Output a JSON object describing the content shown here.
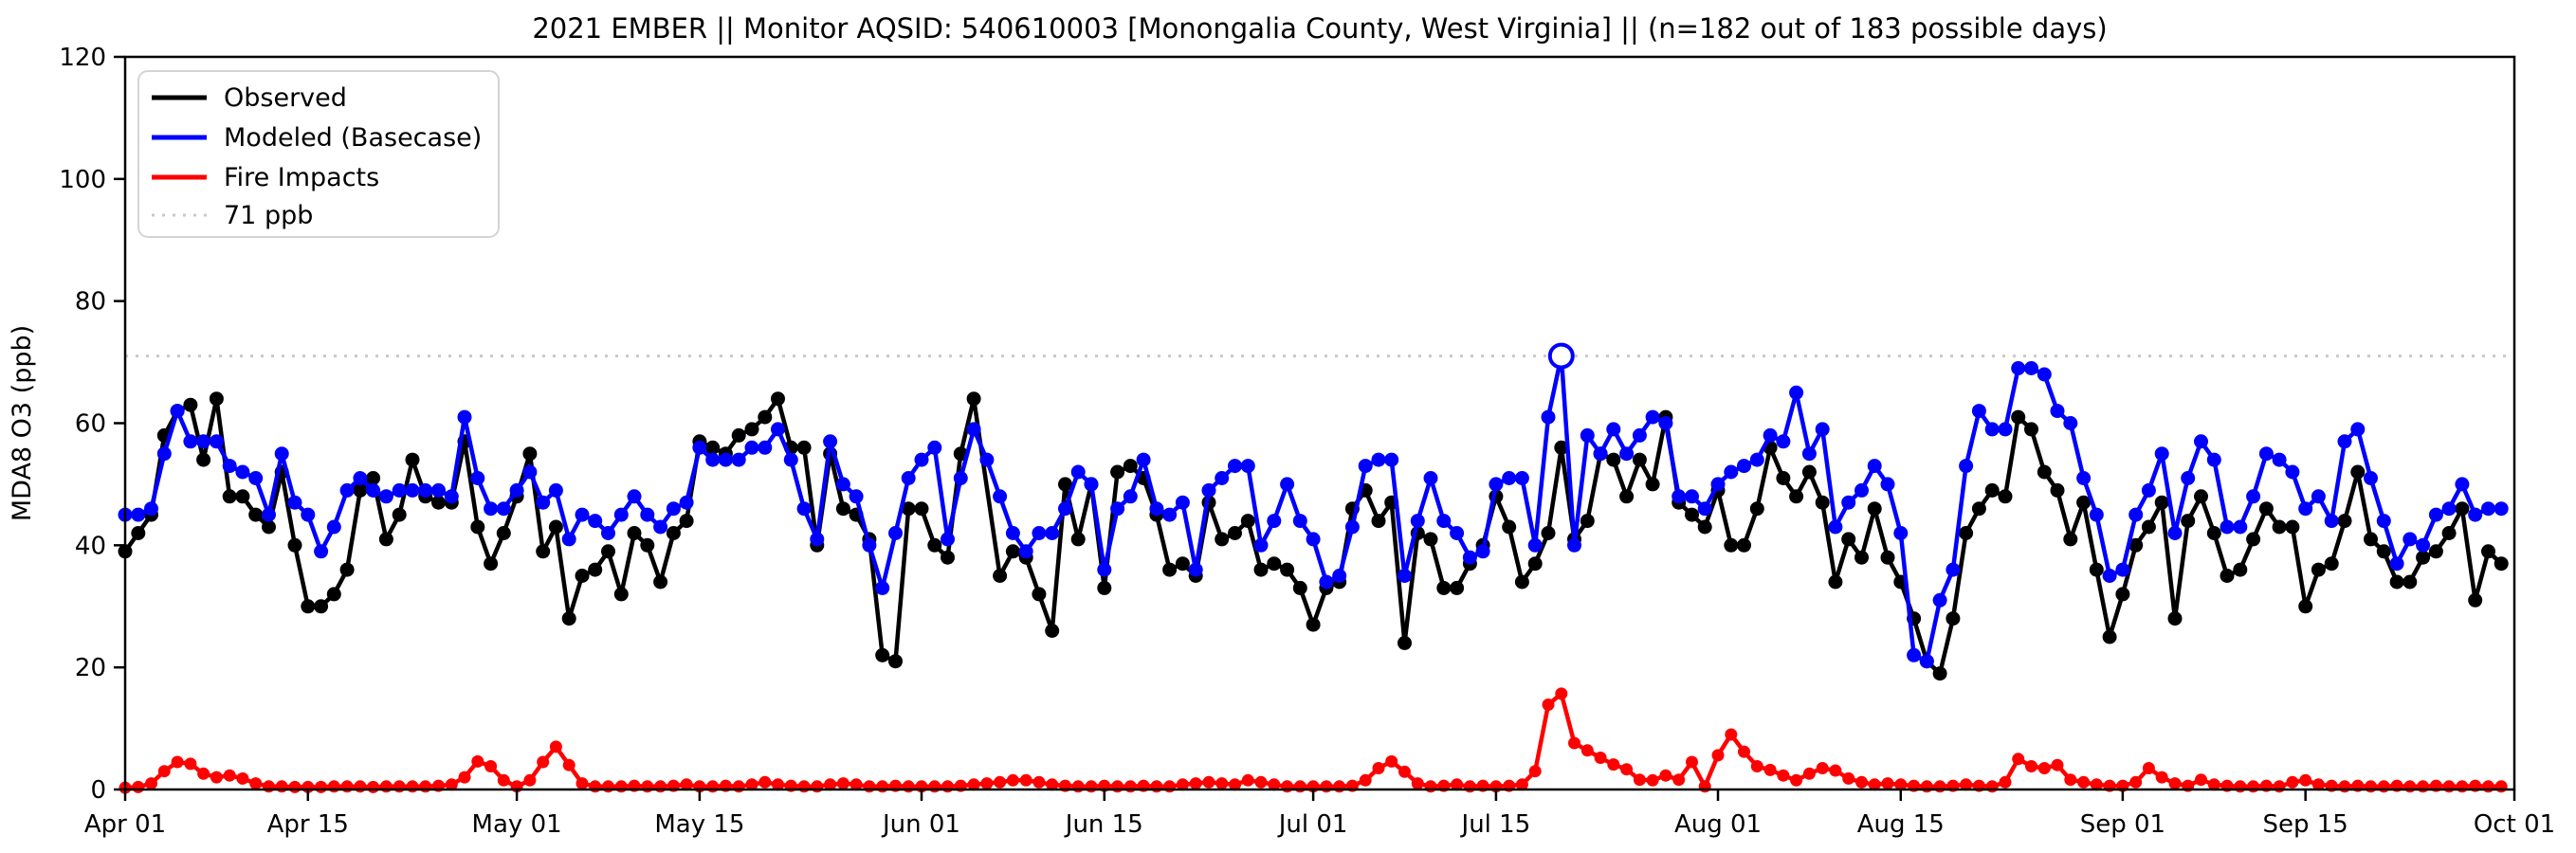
{
  "chart_data": {
    "type": "line",
    "title": "2021 EMBER || Monitor AQSID: 540610003 [Monongalia County, West Virginia] || (n=182 out of 183 possible days)",
    "ylabel": "MDA8 O3 (ppb)",
    "ylim": [
      0,
      120
    ],
    "yticks": [
      0,
      20,
      40,
      60,
      80,
      100,
      120
    ],
    "xtick_labels": [
      "Apr 01",
      "Apr 15",
      "May 01",
      "May 15",
      "Jun 01",
      "Jun 15",
      "Jul 01",
      "Jul 15",
      "Aug 01",
      "Aug 15",
      "Sep 01",
      "Sep 15",
      "Oct 01"
    ],
    "xtick_day_index": [
      0,
      14,
      30,
      44,
      61,
      75,
      91,
      105,
      122,
      136,
      153,
      167,
      183
    ],
    "x_months": [
      {
        "name": "Apr",
        "days": 30
      },
      {
        "name": "May",
        "days": 31
      },
      {
        "name": "Jun",
        "days": 30
      },
      {
        "name": "Jul",
        "days": 31
      },
      {
        "name": "Aug",
        "days": 31
      },
      {
        "name": "Sep",
        "days": 30
      }
    ],
    "x_start": "Apr 01",
    "x_end": "Sep 30",
    "frequency": "daily",
    "n_note": "n=182 out of 183 possible days",
    "grid": false,
    "legend_position": "upper left",
    "background": "#ffffff",
    "series": [
      {
        "name": "Observed",
        "color": "#000000",
        "values": [
          39,
          42,
          45,
          58,
          62,
          63,
          54,
          64,
          48,
          48,
          45,
          43,
          52,
          40,
          30,
          30,
          32,
          36,
          49,
          51,
          41,
          45,
          54,
          48,
          47,
          47,
          57,
          43,
          37,
          42,
          48,
          55,
          39,
          43,
          28,
          35,
          36,
          39,
          32,
          42,
          40,
          34,
          42,
          44,
          57,
          56,
          55,
          58,
          59,
          61,
          64,
          56,
          56,
          40,
          55,
          46,
          45,
          41,
          22,
          21,
          46,
          46,
          40,
          38,
          55,
          64,
          null,
          35,
          39,
          38,
          32,
          26,
          50,
          41,
          50,
          33,
          52,
          53,
          51,
          45,
          36,
          37,
          35,
          47,
          41,
          42,
          44,
          36,
          37,
          36,
          33,
          27,
          33,
          34,
          46,
          49,
          44,
          47,
          24,
          42,
          41,
          33,
          33,
          37,
          40,
          48,
          43,
          34,
          37,
          42,
          56,
          41,
          44,
          55,
          54,
          48,
          54,
          50,
          61,
          47,
          45,
          43,
          49,
          40,
          40,
          46,
          56,
          51,
          48,
          52,
          47,
          34,
          41,
          38,
          46,
          38,
          34,
          28,
          21,
          19,
          28,
          42,
          46,
          49,
          48,
          61,
          59,
          52,
          49,
          41,
          47,
          36,
          25,
          32,
          40,
          43,
          47,
          28,
          44,
          48,
          42,
          35,
          36,
          41,
          46,
          43,
          43,
          30,
          36,
          37,
          44,
          52,
          41,
          39,
          34,
          34,
          38,
          39,
          42,
          46,
          31,
          39,
          37
        ]
      },
      {
        "name": "Modeled (Basecase)",
        "color": "#0000ff",
        "values": [
          45,
          45,
          46,
          55,
          62,
          57,
          57,
          57,
          53,
          52,
          51,
          45,
          55,
          47,
          45,
          39,
          43,
          49,
          51,
          49,
          48,
          49,
          49,
          49,
          49,
          48,
          61,
          51,
          46,
          46,
          49,
          52,
          47,
          49,
          41,
          45,
          44,
          42,
          45,
          48,
          45,
          43,
          46,
          47,
          56,
          54,
          54,
          54,
          56,
          56,
          59,
          54,
          46,
          41,
          57,
          50,
          48,
          40,
          33,
          42,
          51,
          54,
          56,
          41,
          51,
          59,
          54,
          48,
          42,
          39,
          42,
          42,
          46,
          52,
          50,
          36,
          46,
          48,
          54,
          46,
          45,
          47,
          36,
          49,
          51,
          53,
          53,
          40,
          44,
          50,
          44,
          41,
          34,
          35,
          43,
          53,
          54,
          54,
          35,
          44,
          51,
          44,
          42,
          38,
          39,
          50,
          51,
          51,
          40,
          61,
          71,
          40,
          58,
          55,
          59,
          55,
          58,
          61,
          60,
          48,
          48,
          46,
          50,
          52,
          53,
          54,
          58,
          57,
          65,
          55,
          59,
          43,
          47,
          49,
          53,
          50,
          42,
          22,
          21,
          31,
          36,
          53,
          62,
          59,
          59,
          69,
          69,
          68,
          62,
          60,
          51,
          45,
          35,
          36,
          45,
          49,
          55,
          42,
          51,
          57,
          54,
          43,
          43,
          48,
          55,
          54,
          52,
          46,
          48,
          44,
          57,
          59,
          51,
          44,
          37,
          41,
          40,
          45,
          46,
          50,
          45,
          46,
          46
        ],
        "exceedance_marker": {
          "day_index": 110,
          "date": "Jul 20",
          "value": 71,
          "style": "open-circle"
        }
      },
      {
        "name": "Fire Impacts",
        "color": "#ff0000",
        "values": [
          0.3,
          0.4,
          1.0,
          3.0,
          4.5,
          4.2,
          2.6,
          2.0,
          2.3,
          1.8,
          1.0,
          0.5,
          0.5,
          0.4,
          0.4,
          0.4,
          0.5,
          0.5,
          0.5,
          0.4,
          0.5,
          0.5,
          0.5,
          0.5,
          0.6,
          0.8,
          2.0,
          4.6,
          3.8,
          1.5,
          0.5,
          1.5,
          4.5,
          7.0,
          4.0,
          1.0,
          0.5,
          0.5,
          0.5,
          0.6,
          0.5,
          0.5,
          0.6,
          0.8,
          0.5,
          0.5,
          0.6,
          0.5,
          0.8,
          1.2,
          0.8,
          0.6,
          0.5,
          0.5,
          0.8,
          1.0,
          0.8,
          0.5,
          0.5,
          0.6,
          0.5,
          0.5,
          0.5,
          0.5,
          0.6,
          0.8,
          1.0,
          1.2,
          1.5,
          1.5,
          1.2,
          0.8,
          0.6,
          0.5,
          0.5,
          0.6,
          0.5,
          0.5,
          0.6,
          0.5,
          0.5,
          0.8,
          1.0,
          1.2,
          1.0,
          0.8,
          1.5,
          1.2,
          0.8,
          0.5,
          0.5,
          0.5,
          0.5,
          0.5,
          0.6,
          1.5,
          3.5,
          4.6,
          2.9,
          1.0,
          0.5,
          0.6,
          0.8,
          0.5,
          0.6,
          0.5,
          0.6,
          0.8,
          3.0,
          13.9,
          15.7,
          7.6,
          6.4,
          5.2,
          4.1,
          3.3,
          1.6,
          1.5,
          2.3,
          1.6,
          4.5,
          0.5,
          5.6,
          9.0,
          6.2,
          3.8,
          3.2,
          2.3,
          1.5,
          2.6,
          3.5,
          3.1,
          1.8,
          1.2,
          0.8,
          1.0,
          0.8,
          0.6,
          0.5,
          0.5,
          0.6,
          0.8,
          0.6,
          0.5,
          1.2,
          5.0,
          3.8,
          3.5,
          4.0,
          1.6,
          1.2,
          0.8,
          0.6,
          0.6,
          1.2,
          3.5,
          2.0,
          1.0,
          0.6,
          1.6,
          0.8,
          0.6,
          0.5,
          0.5,
          0.6,
          0.5,
          1.2,
          1.5,
          0.8,
          0.6,
          0.5,
          0.6,
          0.5,
          0.5,
          0.6,
          0.5,
          0.5,
          0.6,
          0.5,
          0.5,
          0.6,
          0.5,
          0.5
        ]
      }
    ],
    "threshold_line": {
      "label": "71 ppb",
      "value": 71,
      "color": "#c9c9c9",
      "style": "dotted"
    }
  }
}
